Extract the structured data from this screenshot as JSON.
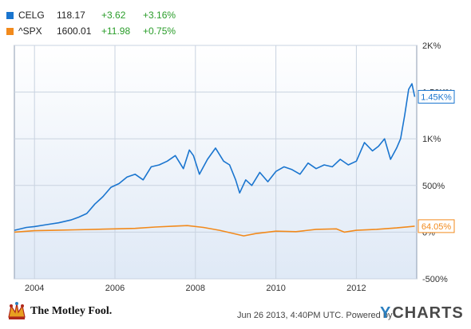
{
  "legend": [
    {
      "symbol": "CELG",
      "price": "118.17",
      "change": "+3.62",
      "pct": "+3.16%",
      "color": "#1a75cf"
    },
    {
      "symbol": "^SPX",
      "price": "1600.01",
      "change": "+11.98",
      "pct": "+0.75%",
      "color": "#f28a1c"
    }
  ],
  "footer": {
    "logo_text": "The Motley Fool.",
    "timestamp": "Jun 26 2013, 4:40PM UTC.",
    "powered_by": "Powered by",
    "brand": "CHARTS",
    "brand_initial": "Y"
  },
  "chart_data": {
    "type": "line",
    "x_ticks": [
      "2004",
      "2006",
      "2008",
      "2010",
      "2012"
    ],
    "y_ticks": [
      "2K%",
      "1.50K%",
      "1K%",
      "500%",
      "0%",
      "-500%"
    ],
    "ylim": [
      -500,
      2000
    ],
    "y_tick_values": [
      2000,
      1500,
      1000,
      500,
      0,
      -500
    ],
    "x_tick_values": [
      2004,
      2006,
      2008,
      2010,
      2012
    ],
    "xlim": [
      2003.5,
      2013.5
    ],
    "grid": true,
    "series": [
      {
        "name": "CELG",
        "color": "#1a75cf",
        "end_label": "1.45K%",
        "x": [
          2003.5,
          2003.8,
          2004.0,
          2004.3,
          2004.6,
          2004.9,
          2005.1,
          2005.3,
          2005.5,
          2005.7,
          2005.9,
          2006.1,
          2006.3,
          2006.5,
          2006.7,
          2006.9,
          2007.1,
          2007.3,
          2007.5,
          2007.7,
          2007.85,
          2007.95,
          2008.1,
          2008.3,
          2008.5,
          2008.7,
          2008.85,
          2009.0,
          2009.1,
          2009.25,
          2009.4,
          2009.6,
          2009.8,
          2010.0,
          2010.2,
          2010.4,
          2010.6,
          2010.8,
          2011.0,
          2011.2,
          2011.4,
          2011.6,
          2011.8,
          2012.0,
          2012.2,
          2012.4,
          2012.55,
          2012.7,
          2012.85,
          2013.0,
          2013.1,
          2013.2,
          2013.3,
          2013.38,
          2013.45
        ],
        "y": [
          20,
          50,
          60,
          80,
          100,
          130,
          160,
          200,
          300,
          380,
          480,
          520,
          590,
          620,
          560,
          700,
          720,
          760,
          820,
          680,
          880,
          820,
          620,
          780,
          900,
          760,
          720,
          560,
          420,
          560,
          500,
          640,
          540,
          650,
          700,
          670,
          620,
          740,
          680,
          720,
          700,
          780,
          720,
          760,
          960,
          870,
          920,
          1000,
          780,
          900,
          1000,
          1250,
          1530,
          1590,
          1450
        ]
      },
      {
        "name": "^SPX",
        "color": "#f28a1c",
        "end_label": "64.05%",
        "x": [
          2003.5,
          2004.0,
          2004.5,
          2005.0,
          2005.5,
          2006.0,
          2006.5,
          2007.0,
          2007.5,
          2007.8,
          2008.2,
          2008.6,
          2008.9,
          2009.2,
          2009.5,
          2010.0,
          2010.5,
          2011.0,
          2011.5,
          2011.7,
          2012.0,
          2012.5,
          2013.0,
          2013.45
        ],
        "y": [
          0,
          15,
          20,
          25,
          30,
          35,
          40,
          55,
          65,
          70,
          50,
          20,
          -10,
          -40,
          -15,
          10,
          5,
          30,
          35,
          0,
          20,
          30,
          45,
          64
        ]
      }
    ]
  }
}
